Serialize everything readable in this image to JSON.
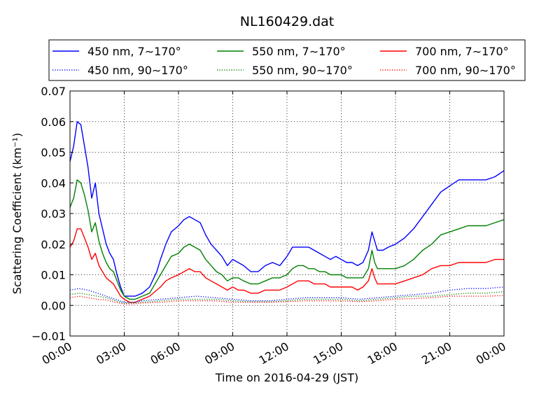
{
  "chart_data": {
    "type": "line",
    "title": "NL160429.dat",
    "xlabel": "Time on 2016-04-29 (JST)",
    "ylabel": "Scattering Coefficient (km⁻¹)",
    "x_unit": "hours (JST)",
    "xlim": [
      0,
      24
    ],
    "ylim": [
      -0.01,
      0.07
    ],
    "xticks": [
      {
        "value": 0,
        "label": "00:00"
      },
      {
        "value": 3,
        "label": "03:00"
      },
      {
        "value": 6,
        "label": "06:00"
      },
      {
        "value": 9,
        "label": "09:00"
      },
      {
        "value": 12,
        "label": "12:00"
      },
      {
        "value": 15,
        "label": "15:00"
      },
      {
        "value": 18,
        "label": "18:00"
      },
      {
        "value": 21,
        "label": "21:00"
      },
      {
        "value": 24,
        "label": "00:00"
      }
    ],
    "yticks": [
      {
        "value": -0.01,
        "label": "−0.01"
      },
      {
        "value": 0.0,
        "label": "0.00"
      },
      {
        "value": 0.01,
        "label": "0.01"
      },
      {
        "value": 0.02,
        "label": "0.02"
      },
      {
        "value": 0.03,
        "label": "0.03"
      },
      {
        "value": 0.04,
        "label": "0.04"
      },
      {
        "value": 0.05,
        "label": "0.05"
      },
      {
        "value": 0.06,
        "label": "0.06"
      },
      {
        "value": 0.07,
        "label": "0.07"
      }
    ],
    "grid": true,
    "grid_style": "dotted",
    "legend_position": "top",
    "legend_columns": 3,
    "series": [
      {
        "name": "450 nm, 7∼170°",
        "color": "#0000ff",
        "dash": "solid",
        "x": [
          0,
          0.2,
          0.4,
          0.6,
          0.8,
          1.0,
          1.2,
          1.4,
          1.6,
          1.8,
          2.0,
          2.2,
          2.4,
          2.6,
          2.8,
          3.0,
          3.3,
          3.6,
          4.0,
          4.4,
          4.8,
          5.0,
          5.3,
          5.6,
          6.0,
          6.3,
          6.6,
          6.9,
          7.2,
          7.5,
          7.8,
          8.1,
          8.4,
          8.7,
          9.0,
          9.3,
          9.6,
          10.0,
          10.4,
          10.8,
          11.2,
          11.6,
          12.0,
          12.3,
          12.6,
          12.9,
          13.2,
          13.5,
          13.8,
          14.1,
          14.4,
          14.7,
          15.0,
          15.3,
          15.6,
          15.9,
          16.2,
          16.5,
          16.7,
          16.85,
          17.0,
          17.3,
          17.6,
          18.0,
          18.5,
          19.0,
          19.5,
          20.0,
          20.5,
          21.0,
          21.5,
          22.0,
          22.5,
          23.0,
          23.5,
          24.0
        ],
        "y": [
          0.047,
          0.052,
          0.06,
          0.059,
          0.052,
          0.045,
          0.035,
          0.04,
          0.03,
          0.025,
          0.02,
          0.017,
          0.015,
          0.01,
          0.006,
          0.003,
          0.003,
          0.003,
          0.004,
          0.006,
          0.011,
          0.015,
          0.02,
          0.024,
          0.026,
          0.028,
          0.029,
          0.028,
          0.027,
          0.023,
          0.02,
          0.018,
          0.016,
          0.013,
          0.015,
          0.014,
          0.013,
          0.011,
          0.011,
          0.013,
          0.014,
          0.013,
          0.016,
          0.019,
          0.019,
          0.019,
          0.019,
          0.018,
          0.017,
          0.016,
          0.015,
          0.016,
          0.015,
          0.014,
          0.014,
          0.013,
          0.014,
          0.018,
          0.024,
          0.021,
          0.018,
          0.018,
          0.019,
          0.02,
          0.022,
          0.025,
          0.029,
          0.033,
          0.037,
          0.039,
          0.041,
          0.041,
          0.041,
          0.041,
          0.042,
          0.044
        ]
      },
      {
        "name": "550 nm, 7∼170°",
        "color": "#008000",
        "dash": "solid",
        "x": [
          0,
          0.2,
          0.4,
          0.6,
          0.8,
          1.0,
          1.2,
          1.4,
          1.6,
          1.8,
          2.0,
          2.2,
          2.4,
          2.6,
          2.8,
          3.0,
          3.3,
          3.6,
          4.0,
          4.4,
          4.8,
          5.0,
          5.3,
          5.6,
          6.0,
          6.3,
          6.6,
          6.9,
          7.2,
          7.5,
          7.8,
          8.1,
          8.4,
          8.7,
          9.0,
          9.3,
          9.6,
          10.0,
          10.4,
          10.8,
          11.2,
          11.6,
          12.0,
          12.3,
          12.6,
          12.9,
          13.2,
          13.5,
          13.8,
          14.1,
          14.4,
          14.7,
          15.0,
          15.3,
          15.6,
          15.9,
          16.2,
          16.5,
          16.7,
          16.85,
          17.0,
          17.3,
          17.6,
          18.0,
          18.5,
          19.0,
          19.5,
          20.0,
          20.5,
          21.0,
          21.5,
          22.0,
          22.5,
          23.0,
          23.5,
          24.0
        ],
        "y": [
          0.032,
          0.035,
          0.041,
          0.04,
          0.036,
          0.031,
          0.024,
          0.027,
          0.021,
          0.017,
          0.014,
          0.012,
          0.011,
          0.008,
          0.005,
          0.003,
          0.002,
          0.002,
          0.003,
          0.004,
          0.008,
          0.01,
          0.013,
          0.016,
          0.017,
          0.019,
          0.02,
          0.019,
          0.018,
          0.015,
          0.013,
          0.011,
          0.01,
          0.008,
          0.009,
          0.009,
          0.008,
          0.007,
          0.007,
          0.008,
          0.009,
          0.009,
          0.01,
          0.012,
          0.013,
          0.013,
          0.012,
          0.012,
          0.011,
          0.011,
          0.01,
          0.01,
          0.01,
          0.009,
          0.009,
          0.009,
          0.009,
          0.012,
          0.018,
          0.014,
          0.012,
          0.012,
          0.012,
          0.012,
          0.013,
          0.015,
          0.018,
          0.02,
          0.023,
          0.024,
          0.025,
          0.026,
          0.026,
          0.026,
          0.027,
          0.028
        ]
      },
      {
        "name": "700 nm, 7∼170°",
        "color": "#ff0000",
        "dash": "solid",
        "x": [
          0,
          0.2,
          0.4,
          0.6,
          0.8,
          1.0,
          1.2,
          1.4,
          1.6,
          1.8,
          2.0,
          2.2,
          2.4,
          2.6,
          2.8,
          3.0,
          3.3,
          3.6,
          4.0,
          4.4,
          4.8,
          5.0,
          5.3,
          5.6,
          6.0,
          6.3,
          6.6,
          6.9,
          7.2,
          7.5,
          7.8,
          8.1,
          8.4,
          8.7,
          9.0,
          9.3,
          9.6,
          10.0,
          10.4,
          10.8,
          11.2,
          11.6,
          12.0,
          12.3,
          12.6,
          12.9,
          13.2,
          13.5,
          13.8,
          14.1,
          14.4,
          14.7,
          15.0,
          15.3,
          15.6,
          15.9,
          16.2,
          16.5,
          16.7,
          16.85,
          17.0,
          17.3,
          17.6,
          18.0,
          18.5,
          19.0,
          19.5,
          20.0,
          20.5,
          21.0,
          21.5,
          22.0,
          22.5,
          23.0,
          23.5,
          24.0
        ],
        "y": [
          0.019,
          0.021,
          0.025,
          0.025,
          0.022,
          0.019,
          0.015,
          0.017,
          0.013,
          0.011,
          0.009,
          0.008,
          0.007,
          0.005,
          0.003,
          0.002,
          0.001,
          0.001,
          0.002,
          0.003,
          0.005,
          0.006,
          0.008,
          0.009,
          0.01,
          0.011,
          0.012,
          0.011,
          0.011,
          0.009,
          0.008,
          0.007,
          0.006,
          0.005,
          0.006,
          0.005,
          0.005,
          0.004,
          0.004,
          0.005,
          0.005,
          0.005,
          0.006,
          0.007,
          0.008,
          0.008,
          0.008,
          0.007,
          0.007,
          0.007,
          0.006,
          0.006,
          0.006,
          0.006,
          0.006,
          0.005,
          0.006,
          0.008,
          0.012,
          0.009,
          0.007,
          0.007,
          0.007,
          0.007,
          0.008,
          0.009,
          0.01,
          0.012,
          0.013,
          0.013,
          0.014,
          0.014,
          0.014,
          0.014,
          0.015,
          0.015
        ]
      },
      {
        "name": "450 nm, 90∼170°",
        "color": "#0000ff",
        "dash": "dotted",
        "x": [
          0,
          0.5,
          1.0,
          1.5,
          2.0,
          2.5,
          3.0,
          3.5,
          4.0,
          5.0,
          6.0,
          7.0,
          8.0,
          9.0,
          10.0,
          11.0,
          12.0,
          13.0,
          14.0,
          15.0,
          16.0,
          17.0,
          18.0,
          19.0,
          20.0,
          21.0,
          22.0,
          23.0,
          24.0
        ],
        "y": [
          0.005,
          0.0055,
          0.005,
          0.004,
          0.003,
          0.002,
          0.001,
          0.001,
          0.0015,
          0.002,
          0.0025,
          0.003,
          0.0025,
          0.002,
          0.0015,
          0.0015,
          0.002,
          0.0025,
          0.0025,
          0.0025,
          0.002,
          0.0025,
          0.003,
          0.0035,
          0.004,
          0.005,
          0.0055,
          0.0055,
          0.006
        ]
      },
      {
        "name": "550 nm, 90∼170°",
        "color": "#008000",
        "dash": "dotted",
        "x": [
          0,
          0.5,
          1.0,
          1.5,
          2.0,
          2.5,
          3.0,
          3.5,
          4.0,
          5.0,
          6.0,
          7.0,
          8.0,
          9.0,
          10.0,
          11.0,
          12.0,
          13.0,
          14.0,
          15.0,
          16.0,
          17.0,
          18.0,
          19.0,
          20.0,
          21.0,
          22.0,
          23.0,
          24.0
        ],
        "y": [
          0.0035,
          0.004,
          0.0035,
          0.003,
          0.0025,
          0.0015,
          0.0008,
          0.0008,
          0.001,
          0.0015,
          0.002,
          0.002,
          0.002,
          0.0015,
          0.0012,
          0.0012,
          0.0015,
          0.002,
          0.002,
          0.002,
          0.0015,
          0.002,
          0.0025,
          0.003,
          0.003,
          0.0035,
          0.004,
          0.004,
          0.0045
        ]
      },
      {
        "name": "700 nm, 90∼170°",
        "color": "#ff0000",
        "dash": "dotted",
        "x": [
          0,
          0.5,
          1.0,
          1.5,
          2.0,
          2.5,
          3.0,
          3.5,
          4.0,
          5.0,
          6.0,
          7.0,
          8.0,
          9.0,
          10.0,
          11.0,
          12.0,
          13.0,
          14.0,
          15.0,
          16.0,
          17.0,
          18.0,
          19.0,
          20.0,
          21.0,
          22.0,
          23.0,
          24.0
        ],
        "y": [
          0.0025,
          0.003,
          0.0025,
          0.002,
          0.0018,
          0.001,
          0.0005,
          0.0005,
          0.0008,
          0.001,
          0.0015,
          0.0015,
          0.0015,
          0.001,
          0.001,
          0.001,
          0.0012,
          0.0015,
          0.0015,
          0.0015,
          0.0012,
          0.0015,
          0.002,
          0.0022,
          0.0025,
          0.003,
          0.003,
          0.003,
          0.0032
        ]
      }
    ]
  }
}
